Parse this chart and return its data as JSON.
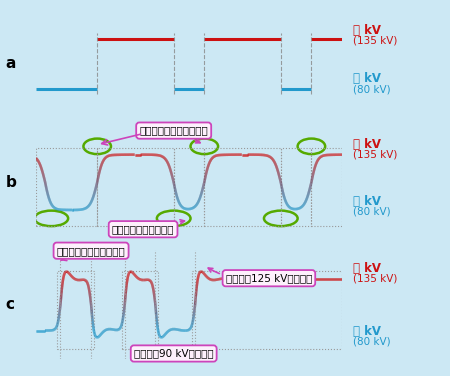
{
  "bg_color": "#cce8f4",
  "high_color": "#cc1111",
  "low_color": "#2299cc",
  "green_color": "#55aa00",
  "annotation_color": "#cc44bb",
  "annotation_bg": "#fdf0fc",
  "label_a": "a",
  "label_b": "b",
  "label_c": "c",
  "anno_b_top": "管電圧が不安定な過渡期",
  "anno_b_bot": "管電圧が安定した区間",
  "anno_c_top": "管電圧が不安定な過渡期",
  "anno_c_mid": "だいたい125 kVくらい？",
  "anno_c_bot": "だいたい90 kVくらい？",
  "text_high1": "高 kV",
  "text_high2": "(135 kV)",
  "text_low1": "低 kV",
  "text_low2": "(80 kV)"
}
